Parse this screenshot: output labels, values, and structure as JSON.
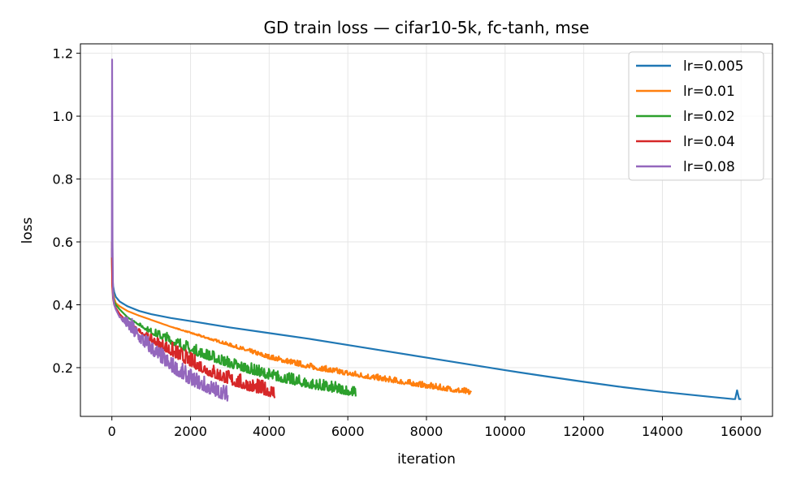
{
  "chart_data": {
    "type": "line",
    "title": "GD train loss — cifar10-5k, fc-tanh, mse",
    "xlabel": "iteration",
    "ylabel": "loss",
    "xlim": [
      -800,
      16800
    ],
    "ylim": [
      0.045,
      1.23
    ],
    "xticks": [
      0,
      2000,
      4000,
      6000,
      8000,
      10000,
      12000,
      14000,
      16000
    ],
    "yticks": [
      0.2,
      0.4,
      0.6,
      0.8,
      1.0,
      1.2
    ],
    "ytick_labels": [
      "0.2",
      "0.4",
      "0.6",
      "0.8",
      "1.0",
      "1.2"
    ],
    "grid": true,
    "legend_position": "top-right",
    "series": [
      {
        "name": "lr=0.005",
        "color": "#1f77b4",
        "noise": 0,
        "x": [
          0,
          10,
          30,
          60,
          100,
          200,
          400,
          700,
          1000,
          1500,
          2000,
          3000,
          4000,
          5000,
          6000,
          7000,
          8000,
          9000,
          10000,
          11000,
          12000,
          13000,
          14000,
          15000,
          15800,
          15850,
          15900,
          15950,
          16000
        ],
        "values": [
          0.6,
          0.5,
          0.46,
          0.44,
          0.425,
          0.41,
          0.395,
          0.38,
          0.37,
          0.358,
          0.348,
          0.328,
          0.31,
          0.292,
          0.272,
          0.252,
          0.232,
          0.212,
          0.192,
          0.173,
          0.155,
          0.138,
          0.123,
          0.11,
          0.1,
          0.1,
          0.128,
          0.1,
          0.1
        ]
      },
      {
        "name": "lr=0.01",
        "color": "#ff7f0e",
        "noise": 0.018,
        "noise_start": 4500,
        "x": [
          0,
          10,
          30,
          60,
          100,
          200,
          400,
          700,
          1000,
          1500,
          2000,
          3000,
          4000,
          5000,
          6000,
          7000,
          8000,
          9000,
          9150
        ],
        "values": [
          0.6,
          0.48,
          0.44,
          0.42,
          0.405,
          0.395,
          0.38,
          0.365,
          0.352,
          0.33,
          0.31,
          0.27,
          0.23,
          0.2,
          0.178,
          0.158,
          0.138,
          0.12,
          0.115
        ]
      },
      {
        "name": "lr=0.02",
        "color": "#2ca02c",
        "noise": 0.035,
        "noise_start": 1500,
        "x": [
          0,
          10,
          30,
          60,
          100,
          200,
          400,
          700,
          1000,
          1500,
          2000,
          3000,
          4000,
          5000,
          6000,
          6200
        ],
        "values": [
          0.58,
          0.47,
          0.43,
          0.41,
          0.4,
          0.385,
          0.36,
          0.335,
          0.31,
          0.28,
          0.25,
          0.205,
          0.168,
          0.14,
          0.118,
          0.112
        ]
      },
      {
        "name": "lr=0.04",
        "color": "#d62728",
        "noise": 0.045,
        "noise_start": 1500,
        "x": [
          0,
          10,
          30,
          60,
          100,
          200,
          400,
          700,
          1000,
          1500,
          2000,
          2500,
          3000,
          3500,
          4000,
          4150
        ],
        "values": [
          0.58,
          0.46,
          0.42,
          0.4,
          0.39,
          0.37,
          0.345,
          0.315,
          0.285,
          0.245,
          0.21,
          0.178,
          0.152,
          0.132,
          0.115,
          0.11
        ]
      },
      {
        "name": "lr=0.08",
        "color": "#9467bd",
        "noise": 0.05,
        "noise_start": 500,
        "x": [
          0,
          5,
          15,
          30,
          60,
          100,
          200,
          400,
          600,
          800,
          1000,
          1500,
          2000,
          2500,
          2950
        ],
        "values": [
          0.55,
          1.18,
          0.6,
          0.43,
          0.4,
          0.385,
          0.36,
          0.33,
          0.3,
          0.275,
          0.25,
          0.195,
          0.152,
          0.122,
          0.1
        ]
      }
    ]
  }
}
